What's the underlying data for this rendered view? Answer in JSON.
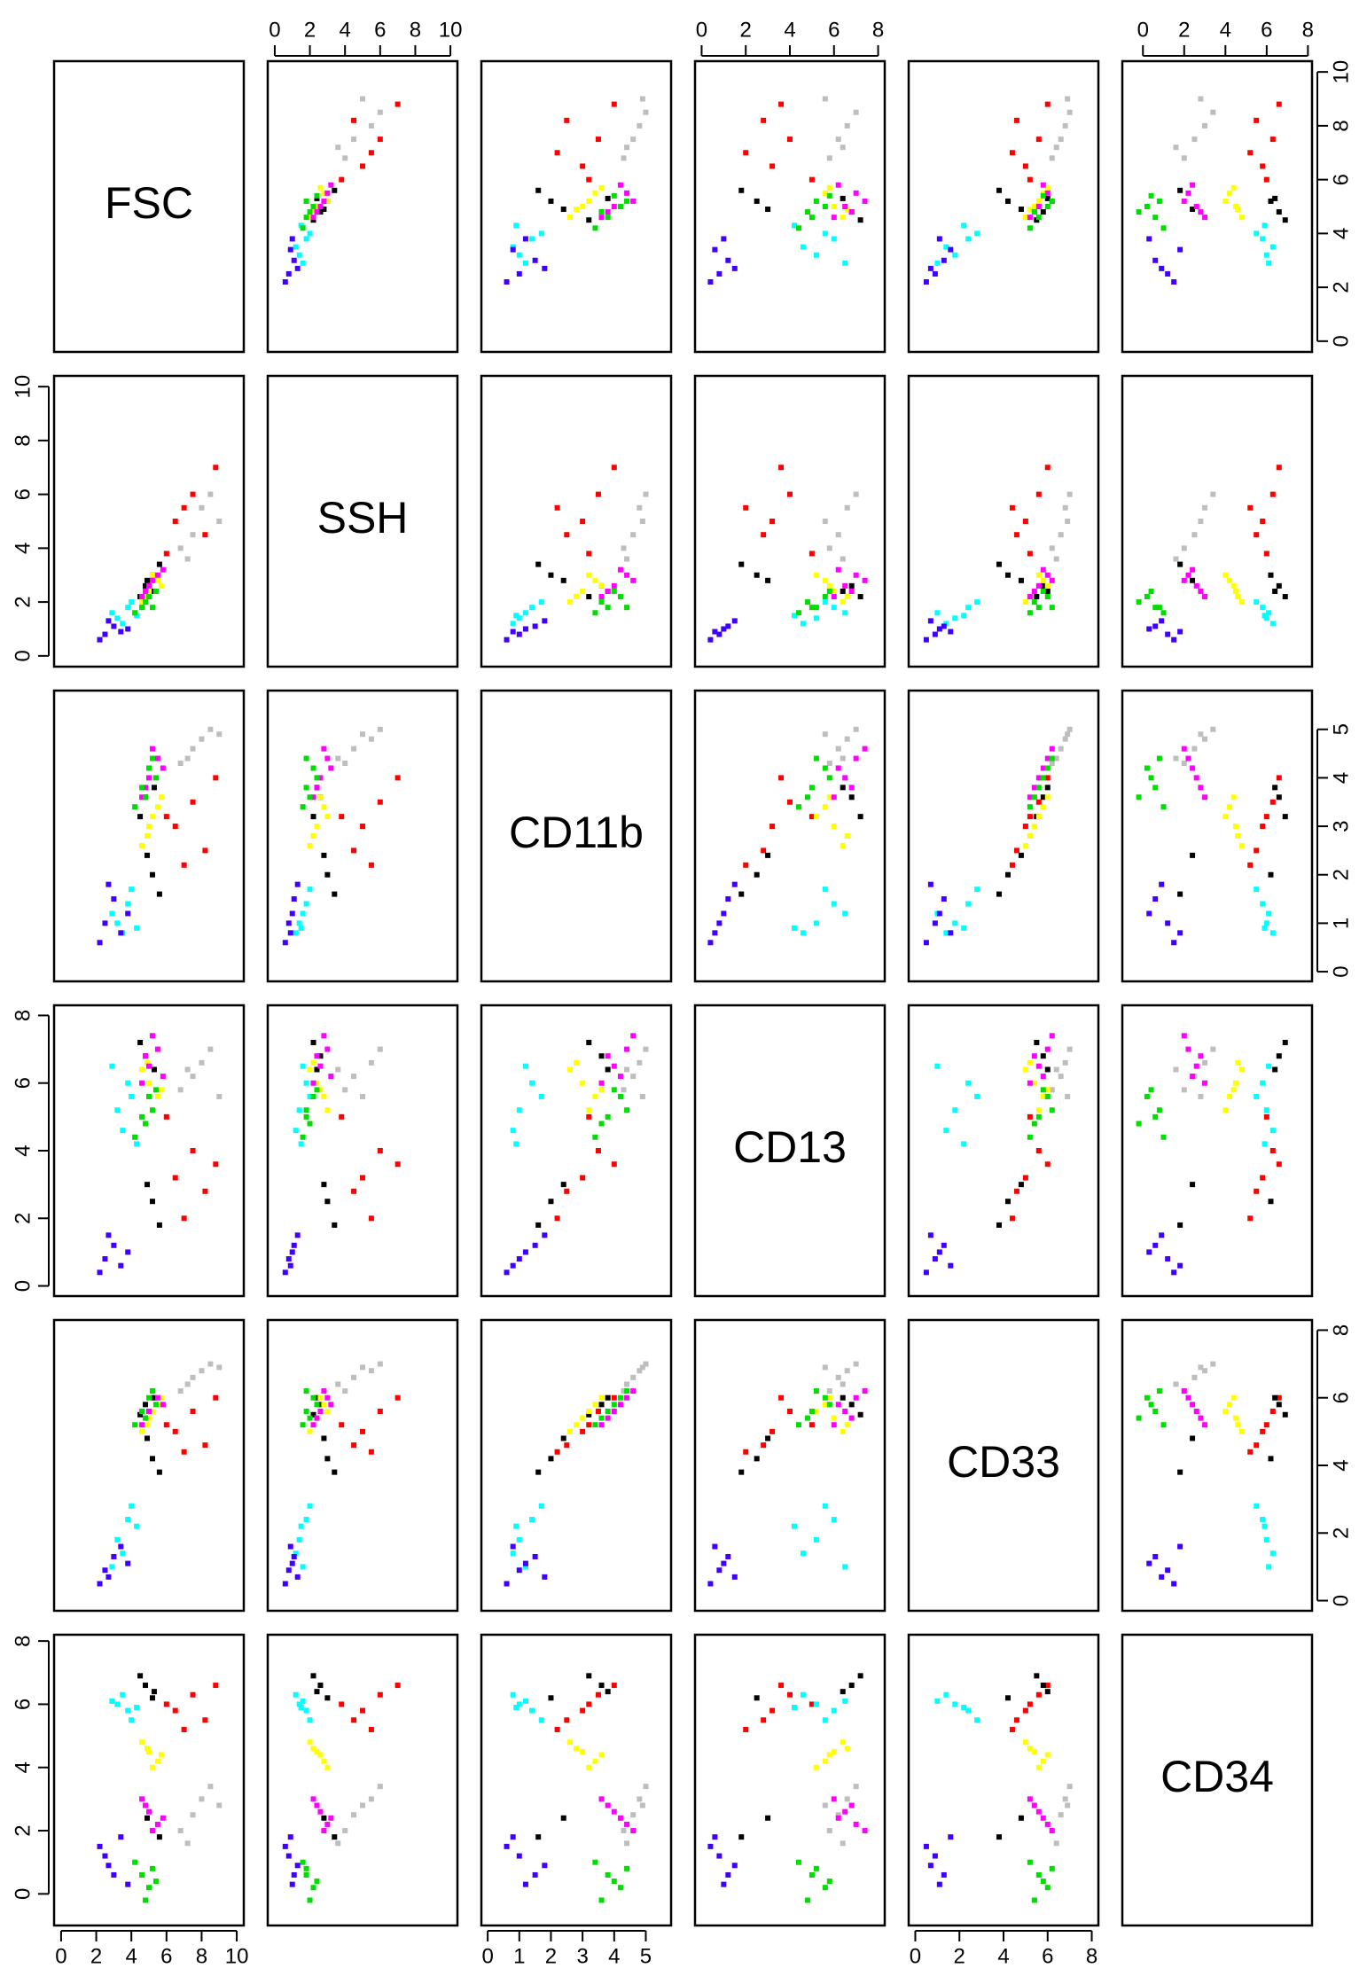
{
  "chart_data": {
    "type": "scatter-matrix",
    "variables": [
      {
        "name": "FSC",
        "lim": [
          -0.4,
          10.4
        ],
        "ticks": [
          0,
          2,
          4,
          6,
          8,
          10
        ]
      },
      {
        "name": "SSH",
        "lim": [
          -0.4,
          10.4
        ],
        "ticks": [
          0,
          2,
          4,
          6,
          8,
          10
        ]
      },
      {
        "name": "CD11b",
        "lim": [
          -0.2,
          5.8
        ],
        "ticks": [
          0,
          1,
          2,
          3,
          4,
          5
        ]
      },
      {
        "name": "CD13",
        "lim": [
          -0.3,
          8.3
        ],
        "ticks": [
          0,
          2,
          4,
          6,
          8
        ]
      },
      {
        "name": "CD33",
        "lim": [
          -0.3,
          8.3
        ],
        "ticks": [
          0,
          2,
          4,
          6,
          8
        ]
      },
      {
        "name": "CD34",
        "lim": [
          -1,
          8.2
        ],
        "ticks": [
          0,
          2,
          4,
          6,
          8
        ]
      }
    ],
    "series": [
      {
        "color": "#bebebe",
        "points": [
          [
            7.5,
            4.5,
            4.6,
            6.2,
            6.6,
            2.5
          ],
          [
            8.0,
            5.5,
            4.8,
            6.6,
            6.8,
            3.0
          ],
          [
            6.8,
            4.0,
            4.3,
            5.8,
            6.2,
            2.0
          ],
          [
            8.5,
            6.0,
            5.0,
            7.0,
            7.0,
            3.4
          ],
          [
            7.2,
            3.6,
            4.4,
            6.4,
            6.4,
            1.6
          ],
          [
            9.0,
            5.0,
            4.9,
            5.6,
            6.9,
            2.8
          ]
        ]
      },
      {
        "color": "#ff0000",
        "points": [
          [
            6.5,
            5.0,
            3.0,
            3.2,
            5.0,
            5.8
          ],
          [
            7.5,
            6.0,
            3.5,
            4.0,
            5.6,
            6.3
          ],
          [
            8.2,
            4.5,
            2.5,
            2.8,
            4.6,
            5.5
          ],
          [
            6.0,
            3.8,
            3.2,
            5.0,
            5.2,
            6.0
          ],
          [
            8.8,
            7.0,
            4.0,
            3.6,
            6.0,
            6.6
          ],
          [
            7.0,
            5.5,
            2.2,
            2.0,
            4.4,
            5.2
          ]
        ]
      },
      {
        "color": "#000000",
        "points": [
          [
            4.8,
            2.6,
            3.6,
            6.8,
            5.8,
            6.6
          ],
          [
            5.2,
            3.0,
            2.0,
            2.5,
            4.2,
            6.2
          ],
          [
            4.5,
            2.2,
            3.2,
            7.2,
            5.5,
            6.9
          ],
          [
            5.6,
            3.4,
            1.6,
            1.8,
            3.8,
            1.8
          ],
          [
            4.9,
            2.8,
            2.4,
            3.0,
            4.8,
            2.4
          ],
          [
            5.3,
            2.4,
            3.8,
            6.4,
            6.0,
            6.4
          ]
        ]
      },
      {
        "color": "#00ffff",
        "points": [
          [
            3.2,
            1.4,
            1.0,
            5.2,
            1.8,
            6.0
          ],
          [
            3.8,
            1.8,
            1.4,
            6.0,
            2.4,
            5.8
          ],
          [
            3.5,
            1.2,
            0.8,
            4.6,
            1.4,
            6.3
          ],
          [
            4.0,
            2.0,
            1.7,
            5.6,
            2.8,
            5.5
          ],
          [
            2.9,
            1.6,
            1.2,
            6.5,
            1.0,
            6.1
          ],
          [
            4.3,
            1.5,
            0.9,
            4.2,
            2.2,
            5.9
          ]
        ]
      },
      {
        "color": "#ffff00",
        "points": [
          [
            5.0,
            2.4,
            3.0,
            6.0,
            5.4,
            4.5
          ],
          [
            5.5,
            2.8,
            3.4,
            5.6,
            5.8,
            4.2
          ],
          [
            4.6,
            2.0,
            2.6,
            6.4,
            5.0,
            4.8
          ],
          [
            5.2,
            3.0,
            3.2,
            5.2,
            5.6,
            4.0
          ],
          [
            4.9,
            2.2,
            2.8,
            6.6,
            5.2,
            4.6
          ],
          [
            5.7,
            2.6,
            3.6,
            5.8,
            6.0,
            4.4
          ]
        ]
      },
      {
        "color": "#ff00ff",
        "points": [
          [
            5.0,
            2.6,
            4.0,
            6.5,
            5.6,
            2.6
          ],
          [
            5.5,
            3.0,
            4.4,
            7.0,
            6.0,
            2.2
          ],
          [
            4.6,
            2.2,
            3.6,
            6.0,
            5.2,
            3.0
          ],
          [
            5.2,
            2.8,
            4.6,
            7.4,
            6.2,
            2.0
          ],
          [
            4.8,
            2.4,
            3.8,
            6.8,
            5.4,
            2.8
          ],
          [
            5.8,
            3.2,
            4.2,
            6.2,
            5.8,
            2.4
          ]
        ]
      },
      {
        "color": "#00dd00",
        "points": [
          [
            4.6,
            1.8,
            3.8,
            5.0,
            5.6,
            0.6
          ],
          [
            5.0,
            2.2,
            4.2,
            5.6,
            6.0,
            0.2
          ],
          [
            4.2,
            1.6,
            3.4,
            4.4,
            5.2,
            1.0
          ],
          [
            5.4,
            2.4,
            4.0,
            5.8,
            5.8,
            0.4
          ],
          [
            4.8,
            2.0,
            3.6,
            4.8,
            5.4,
            -0.2
          ],
          [
            5.2,
            1.8,
            4.4,
            5.2,
            6.2,
            0.8
          ]
        ]
      },
      {
        "color": "#4000ff",
        "points": [
          [
            2.5,
            0.8,
            1.0,
            0.8,
            0.9,
            1.2
          ],
          [
            3.0,
            1.1,
            1.5,
            1.2,
            1.3,
            0.6
          ],
          [
            3.4,
            0.9,
            0.8,
            0.6,
            1.6,
            1.8
          ],
          [
            2.7,
            1.3,
            1.8,
            1.5,
            0.7,
            0.9
          ],
          [
            3.8,
            1.0,
            1.2,
            1.0,
            1.1,
            0.3
          ],
          [
            2.2,
            0.6,
            0.6,
            0.4,
            0.5,
            1.5
          ]
        ]
      }
    ]
  }
}
